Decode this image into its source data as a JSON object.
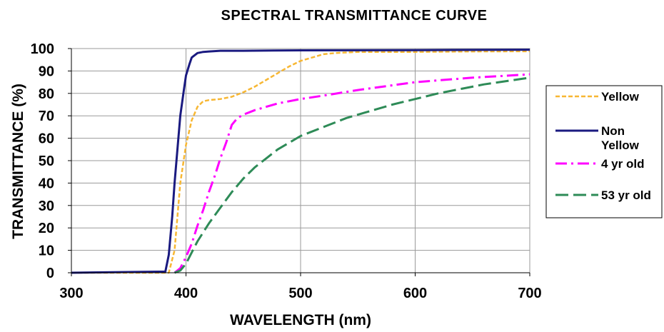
{
  "chart_data": {
    "type": "line",
    "title": "SPECTRAL TRANSMITTANCE CURVE",
    "xlabel": "WAVELENGTH (nm)",
    "ylabel": "TRANSMITTANCE (%)",
    "xlim": [
      300,
      700
    ],
    "ylim": [
      0,
      100
    ],
    "x_ticks": [
      300,
      400,
      500,
      600,
      700
    ],
    "y_ticks": [
      0,
      10,
      20,
      30,
      40,
      50,
      60,
      70,
      80,
      90,
      100
    ],
    "grid": true,
    "legend_position": "right",
    "series": [
      {
        "name": "Yellow",
        "color": "#f7b733",
        "dash": "dashed",
        "x": [
          300,
          385,
          390,
          395,
          400,
          405,
          410,
          415,
          420,
          430,
          440,
          450,
          460,
          470,
          480,
          490,
          500,
          510,
          520,
          530,
          550,
          600,
          650,
          700
        ],
        "y": [
          0,
          0,
          10,
          40,
          57,
          68,
          74,
          76.5,
          77,
          77.5,
          78.5,
          80.5,
          83,
          86,
          89,
          92,
          94.5,
          96,
          97.5,
          98,
          98.5,
          98.5,
          98.7,
          98.8
        ]
      },
      {
        "name": "Non Yellow",
        "color": "#1a1a80",
        "dash": "solid",
        "x": [
          300,
          382,
          385,
          388,
          390,
          393,
          395,
          398,
          400,
          403,
          405,
          410,
          415,
          420,
          430,
          450,
          500,
          600,
          700
        ],
        "y": [
          0,
          0.5,
          8,
          25,
          40,
          58,
          70,
          81,
          88,
          93,
          96,
          98,
          98.5,
          98.7,
          99,
          99,
          99.2,
          99.3,
          99.5
        ]
      },
      {
        "name": "4 yr old",
        "color": "#ff00ff",
        "dash": "dash-dot",
        "x": [
          390,
          395,
          400,
          405,
          410,
          415,
          420,
          425,
          430,
          435,
          440,
          445,
          450,
          460,
          470,
          480,
          500,
          520,
          550,
          600,
          650,
          700
        ],
        "y": [
          0,
          2,
          7,
          13,
          21,
          28,
          36,
          43,
          51,
          58,
          66,
          69,
          70.5,
          72.5,
          74,
          75.5,
          77.5,
          79,
          81.5,
          85,
          87,
          88.5
        ]
      },
      {
        "name": "53 yr old",
        "color": "#2e8b57",
        "dash": "long-dash",
        "x": [
          390,
          395,
          400,
          405,
          410,
          420,
          430,
          440,
          450,
          460,
          470,
          480,
          500,
          520,
          540,
          560,
          580,
          600,
          620,
          640,
          660,
          680,
          700
        ],
        "y": [
          0,
          1,
          4,
          9,
          14,
          22,
          29,
          36,
          42,
          47,
          51,
          55,
          61,
          65,
          69,
          72,
          75,
          77.5,
          80,
          82,
          84,
          85.5,
          87
        ]
      }
    ]
  }
}
